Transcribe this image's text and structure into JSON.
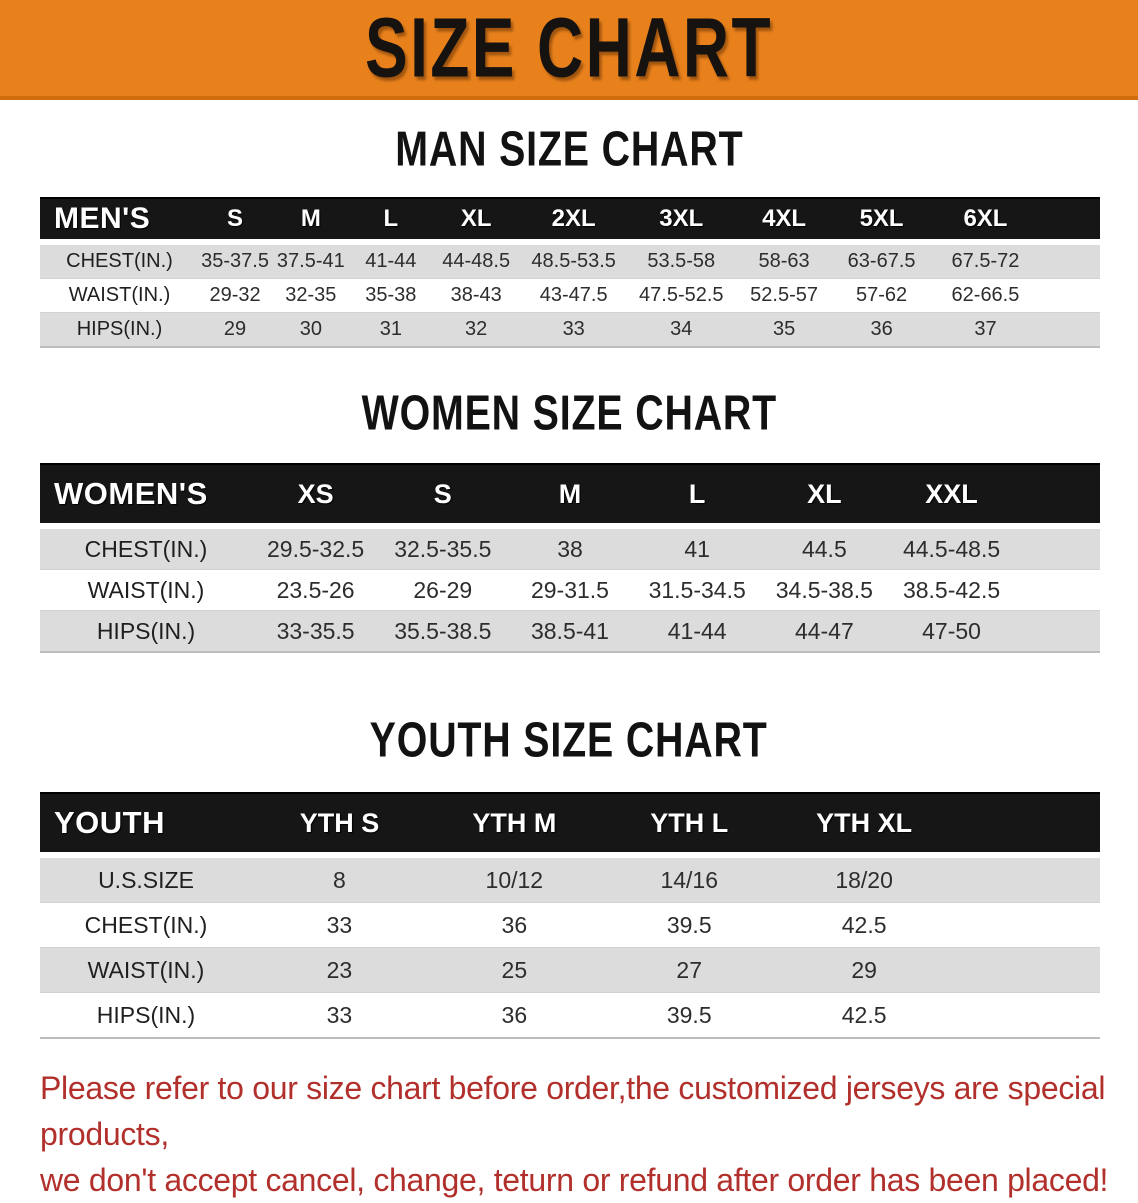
{
  "banner": {
    "title": "SIZE CHART"
  },
  "colors": {
    "banner_bg": "#E8811C",
    "table_header_bg": "#161616",
    "row_stripe_bg": "#DCDCDC",
    "disclaimer_red": "#B2302C"
  },
  "sections": [
    {
      "heading": "MAN SIZE CHART",
      "table": {
        "header_label": "MEN'S",
        "columns": [
          "S",
          "M",
          "L",
          "XL",
          "2XL",
          "3XL",
          "4XL",
          "5XL",
          "6XL"
        ],
        "rows": [
          {
            "label": "CHEST(IN.)",
            "values": [
              "35-37.5",
              "37.5-41",
              "41-44",
              "44-48.5",
              "48.5-53.5",
              "53.5-58",
              "58-63",
              "63-67.5",
              "67.5-72"
            ]
          },
          {
            "label": "WAIST(IN.)",
            "values": [
              "29-32",
              "32-35",
              "35-38",
              "38-43",
              "43-47.5",
              "47.5-52.5",
              "52.5-57",
              "57-62",
              "62-66.5"
            ]
          },
          {
            "label": "HIPS(IN.)",
            "values": [
              "29",
              "30",
              "31",
              "32",
              "33",
              "34",
              "35",
              "36",
              "37"
            ]
          }
        ]
      }
    },
    {
      "heading": "WOMEN SIZE CHART",
      "table": {
        "header_label": "WOMEN'S",
        "columns": [
          "XS",
          "S",
          "M",
          "L",
          "XL",
          "XXL"
        ],
        "rows": [
          {
            "label": "CHEST(IN.)",
            "values": [
              "29.5-32.5",
              "32.5-35.5",
              "38",
              "41",
              "44.5",
              "44.5-48.5"
            ]
          },
          {
            "label": "WAIST(IN.)",
            "values": [
              "23.5-26",
              "26-29",
              "29-31.5",
              "31.5-34.5",
              "34.5-38.5",
              "38.5-42.5"
            ]
          },
          {
            "label": "HIPS(IN.)",
            "values": [
              "33-35.5",
              "35.5-38.5",
              "38.5-41",
              "41-44",
              "44-47",
              "47-50"
            ]
          }
        ]
      }
    },
    {
      "heading": "YOUTH SIZE CHART",
      "table": {
        "header_label": "YOUTH",
        "columns": [
          "YTH S",
          "YTH M",
          "YTH L",
          "YTH XL"
        ],
        "rows": [
          {
            "label": "U.S.SIZE",
            "values": [
              "8",
              "10/12",
              "14/16",
              "18/20"
            ]
          },
          {
            "label": "CHEST(IN.)",
            "values": [
              "33",
              "36",
              "39.5",
              "42.5"
            ]
          },
          {
            "label": "WAIST(IN.)",
            "values": [
              "23",
              "25",
              "27",
              "29"
            ]
          },
          {
            "label": "HIPS(IN.)",
            "values": [
              "33",
              "36",
              "39.5",
              "42.5"
            ]
          }
        ]
      }
    }
  ],
  "disclaimer": {
    "line1": "Please refer to our size chart before order,the customized jerseys are special products,",
    "line2": "we don't accept cancel, change, teturn or refund after order has been placed!"
  }
}
